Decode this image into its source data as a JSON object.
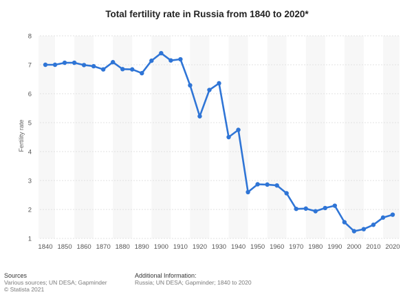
{
  "chart_data": {
    "type": "line",
    "title": "Total fertility rate in Russia from 1840 to 2020*",
    "ylabel": "Fertility rate",
    "xlabel": "",
    "xlim": [
      1840,
      2020
    ],
    "ylim": [
      1,
      8
    ],
    "x_ticks": [
      1840,
      1850,
      1860,
      1870,
      1880,
      1890,
      1900,
      1910,
      1920,
      1930,
      1940,
      1950,
      1960,
      1970,
      1980,
      1990,
      2000,
      2010,
      2020
    ],
    "y_ticks": [
      1,
      2,
      3,
      4,
      5,
      6,
      7,
      8
    ],
    "grid": true,
    "line_color": "#2f75d6",
    "x": [
      1840,
      1845,
      1850,
      1855,
      1860,
      1865,
      1870,
      1875,
      1880,
      1885,
      1890,
      1895,
      1900,
      1905,
      1910,
      1915,
      1920,
      1925,
      1930,
      1935,
      1940,
      1945,
      1950,
      1955,
      1960,
      1965,
      1970,
      1975,
      1980,
      1985,
      1990,
      1995,
      2000,
      2005,
      2010,
      2015,
      2020
    ],
    "values": [
      7.0,
      7.0,
      7.07,
      7.07,
      6.99,
      6.95,
      6.84,
      7.09,
      6.85,
      6.84,
      6.71,
      7.14,
      7.4,
      7.15,
      7.19,
      6.29,
      5.22,
      6.13,
      6.36,
      4.5,
      4.75,
      2.6,
      2.87,
      2.86,
      2.83,
      2.56,
      2.02,
      2.03,
      1.94,
      2.05,
      2.13,
      1.56,
      1.25,
      1.32,
      1.47,
      1.72,
      1.82
    ]
  },
  "footer": {
    "sources_title": "Sources",
    "sources_text": "Various sources; UN DESA; Gapminder",
    "copyright": "© Statista 2021",
    "additional_title": "Additional Information:",
    "additional_text": "Russia; UN DESA; Gapminder; 1840 to 2020"
  }
}
